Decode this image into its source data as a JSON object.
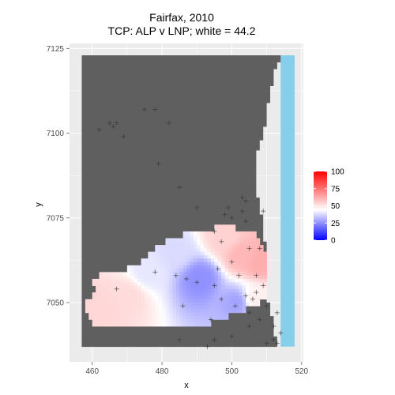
{
  "chart_data": {
    "type": "heatmap",
    "title": "Fairfax, 2010",
    "subtitle": "TCP: ALP v LNP; white = 44.2",
    "xlabel": "x",
    "ylabel": "y",
    "xlim": [
      453.5,
      520.5
    ],
    "ylim": [
      7032.5,
      7126.5
    ],
    "x_ticks": [
      460,
      480,
      500,
      520
    ],
    "y_ticks": [
      7050,
      7075,
      7100,
      7125
    ],
    "grid": true,
    "legend": {
      "position": "right",
      "ticks": [
        0,
        25,
        50,
        75,
        100
      ],
      "min": 0,
      "max": 100,
      "midpoint": 44.2,
      "low_color": "#0000ff",
      "mid_color": "#ffffff",
      "high_color": "#ff0000"
    },
    "colors": {
      "panel": "#ebebeb",
      "gridline": "#ffffff",
      "land": "#5f5f5f",
      "sea": "#87ceeb",
      "booth_marker": "#333333"
    },
    "sea_band": {
      "x_range": [
        514,
        518
      ],
      "y_range": [
        7037,
        7123
      ]
    },
    "land_block": {
      "x_range": [
        457,
        518
      ],
      "y_range": [
        7037,
        7123
      ]
    },
    "coastline": [
      [
        7123,
        514
      ],
      [
        7120,
        513
      ],
      [
        7118,
        512
      ],
      [
        7114,
        511.5
      ],
      [
        7109,
        510.5
      ],
      [
        7104,
        510
      ],
      [
        7100,
        509
      ],
      [
        7096,
        508
      ],
      [
        7094,
        507
      ],
      [
        7089,
        506.5
      ],
      [
        7084,
        507
      ],
      [
        7078,
        508
      ],
      [
        7073,
        509
      ],
      [
        7068,
        509.5
      ],
      [
        7064,
        510
      ],
      [
        7058,
        510
      ],
      [
        7054,
        510
      ],
      [
        7050,
        510.5
      ],
      [
        7046,
        511.5
      ],
      [
        7042,
        512
      ],
      [
        7037,
        513.5
      ]
    ],
    "vote_field_rows": [
      {
        "y": 7073,
        "x_from": 495,
        "x_to": 501
      },
      {
        "y": 7071,
        "x_from": 486,
        "x_to": 507
      },
      {
        "y": 7069,
        "x_from": 481,
        "x_to": 508
      },
      {
        "y": 7067,
        "x_from": 478,
        "x_to": 509
      },
      {
        "y": 7065,
        "x_from": 476,
        "x_to": 509.5
      },
      {
        "y": 7063,
        "x_from": 474,
        "x_to": 509.5
      },
      {
        "y": 7061,
        "x_from": 470,
        "x_to": 509.5
      },
      {
        "y": 7059,
        "x_from": 462,
        "x_to": 509.5
      },
      {
        "y": 7057,
        "x_from": 460,
        "x_to": 509.5
      },
      {
        "y": 7055,
        "x_from": 461,
        "x_to": 509.5
      },
      {
        "y": 7053,
        "x_from": 460,
        "x_to": 509.5
      },
      {
        "y": 7051,
        "x_from": 458,
        "x_to": 508
      },
      {
        "y": 7049,
        "x_from": 458,
        "x_to": 504
      },
      {
        "y": 7047,
        "x_from": 459,
        "x_to": 499
      },
      {
        "y": 7045,
        "x_from": 460,
        "x_to": 494
      }
    ],
    "vote_centers": [
      {
        "x": 503,
        "y": 7064,
        "value": 60
      },
      {
        "x": 508,
        "y": 7062,
        "value": 62
      },
      {
        "x": 498,
        "y": 7069,
        "value": 54
      },
      {
        "x": 491,
        "y": 7057,
        "value": 25
      },
      {
        "x": 502,
        "y": 7050,
        "value": 28
      },
      {
        "x": 484,
        "y": 7065,
        "value": 38
      },
      {
        "x": 470,
        "y": 7052,
        "value": 52
      },
      {
        "x": 463,
        "y": 7049,
        "value": 53
      },
      {
        "x": 476,
        "y": 7059,
        "value": 40
      },
      {
        "x": 506,
        "y": 7051,
        "value": 48
      }
    ],
    "booths": [
      [
        465,
        7103
      ],
      [
        466,
        7102
      ],
      [
        467,
        7103
      ],
      [
        469,
        7099
      ],
      [
        462,
        7101
      ],
      [
        475,
        7107
      ],
      [
        478,
        7107
      ],
      [
        482,
        7103
      ],
      [
        479,
        7091
      ],
      [
        485,
        7084
      ],
      [
        490,
        7078
      ],
      [
        499,
        7078
      ],
      [
        503,
        7081
      ],
      [
        504,
        7080
      ],
      [
        498,
        7076
      ],
      [
        500,
        7075
      ],
      [
        503,
        7077
      ],
      [
        504,
        7074
      ],
      [
        509,
        7077
      ],
      [
        495,
        7071
      ],
      [
        497,
        7068
      ],
      [
        505,
        7066
      ],
      [
        508,
        7066
      ],
      [
        496,
        7060
      ],
      [
        500,
        7062
      ],
      [
        502,
        7058
      ],
      [
        495,
        7055
      ],
      [
        490,
        7056
      ],
      [
        487,
        7057
      ],
      [
        484,
        7058
      ],
      [
        486,
        7049
      ],
      [
        494,
        7045
      ],
      [
        501,
        7049
      ],
      [
        506,
        7051
      ],
      [
        507,
        7053
      ],
      [
        505,
        7043
      ],
      [
        508,
        7045
      ],
      [
        510,
        7049
      ],
      [
        513,
        7047
      ],
      [
        512,
        7043
      ],
      [
        514,
        7041
      ],
      [
        512,
        7039
      ],
      [
        510,
        7038
      ],
      [
        513,
        7038
      ],
      [
        500,
        7040
      ],
      [
        495,
        7039
      ],
      [
        485,
        7039
      ],
      [
        493,
        7037
      ],
      [
        467,
        7054
      ],
      [
        478,
        7059
      ],
      [
        507,
        7058
      ],
      [
        509,
        7055
      ],
      [
        504,
        7052
      ],
      [
        497,
        7051
      ],
      [
        505,
        7047
      ]
    ]
  }
}
